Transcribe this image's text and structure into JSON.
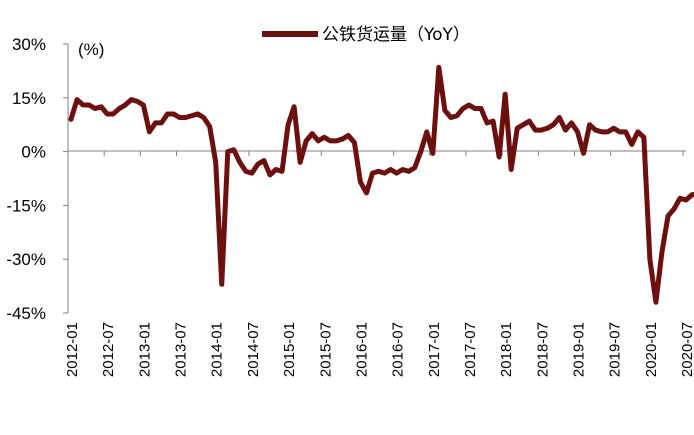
{
  "chart_data": {
    "type": "line",
    "unit_label": "(%)",
    "legend": {
      "label": "公铁货运量（YoY）",
      "position": "top-center"
    },
    "series": [
      {
        "name": "公铁货运量（YoY）",
        "color": "#6b0f0f",
        "values": [
          9,
          14.5,
          13,
          13,
          12,
          12.5,
          10.5,
          10.5,
          12,
          13,
          14.5,
          14,
          13,
          5.5,
          8,
          8,
          10.5,
          10.5,
          9.5,
          9.5,
          10,
          10.5,
          9.5,
          7,
          -3,
          -37,
          0,
          0.5,
          -3,
          -5.5,
          -6,
          -3.5,
          -2.5,
          -6.5,
          -5,
          -5.5,
          7.5,
          12.5,
          -3,
          3,
          5,
          3,
          4,
          3,
          3,
          3.5,
          4.5,
          2.5,
          -8.5,
          -11.5,
          -6,
          -5.5,
          -6,
          -5,
          -6,
          -5,
          -5.5,
          -4.5,
          0,
          5.5,
          -0.5,
          23.5,
          11.5,
          9.5,
          10,
          12,
          13,
          12,
          12,
          8,
          8.5,
          -1.5,
          16,
          -5,
          6.5,
          7.5,
          8.5,
          6,
          6,
          6.5,
          7.5,
          9.5,
          6,
          8,
          5.5,
          -0.5,
          7.5,
          6,
          5.5,
          5.5,
          6.5,
          5.5,
          5.5,
          2,
          5.5,
          4,
          -30,
          -42,
          -28,
          -18,
          -16,
          -13,
          -13.5,
          -12,
          -12,
          -12
        ]
      }
    ],
    "x_tick_labels": [
      "2012-01",
      "2012-07",
      "2013-01",
      "2013-07",
      "2014-01",
      "2014-07",
      "2015-01",
      "2015-07",
      "2016-01",
      "2016-07",
      "2017-01",
      "2017-07",
      "2018-01",
      "2018-07",
      "2019-01",
      "2019-07",
      "2020-01",
      "2020-07"
    ],
    "y_tick_labels": [
      "30%",
      "15%",
      "0%",
      "-15%",
      "-30%",
      "-45%"
    ],
    "y_ticks": [
      30,
      15,
      0,
      -15,
      -30,
      -45
    ],
    "ylim": [
      -45,
      30
    ],
    "grid": false
  }
}
